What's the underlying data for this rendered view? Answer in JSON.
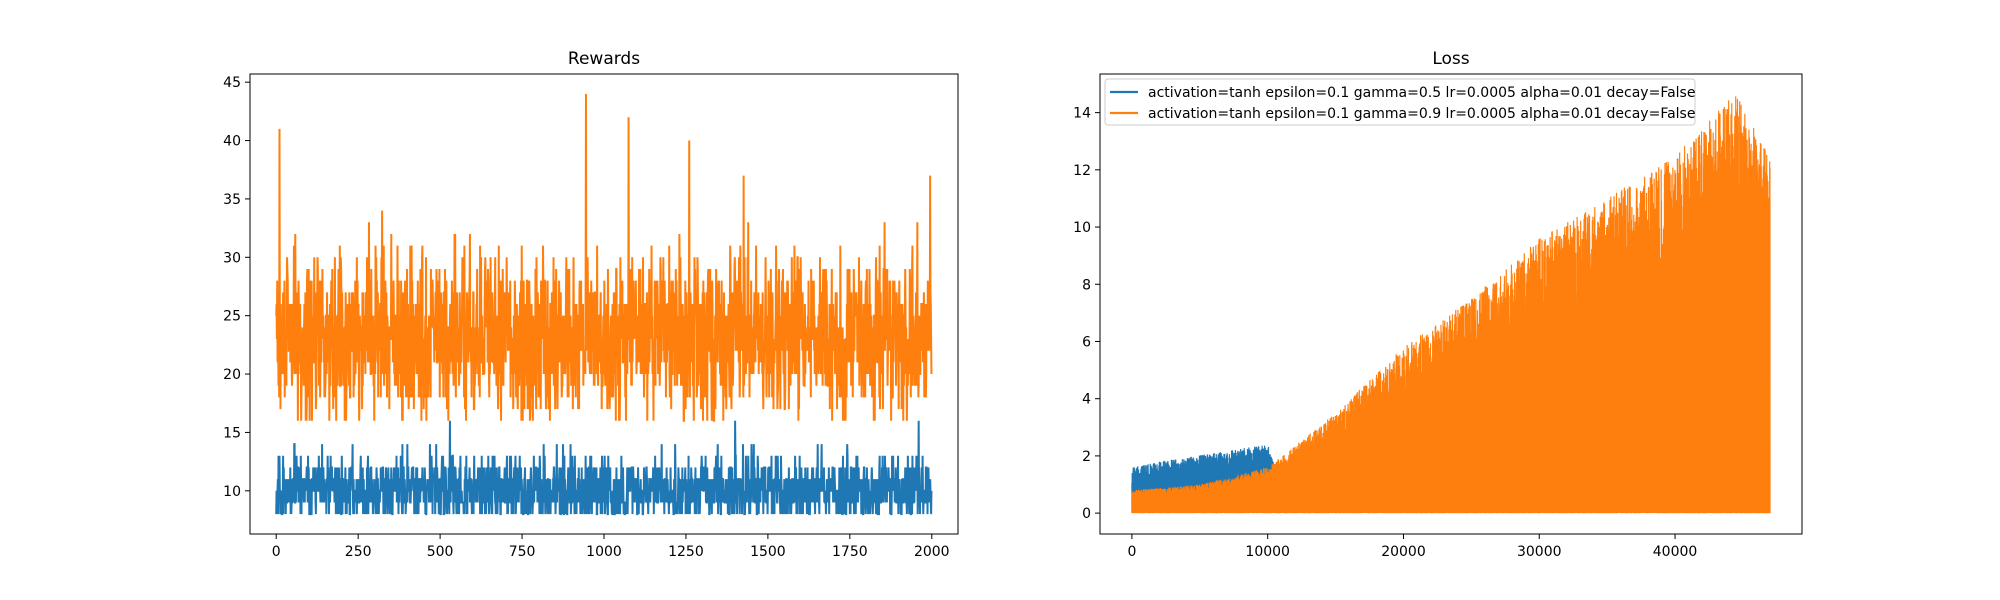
{
  "chart_data": [
    {
      "type": "line",
      "title": "Rewards",
      "xlabel": "",
      "ylabel": "",
      "xlim": [
        -80,
        2080
      ],
      "ylim": [
        6.3,
        45.7
      ],
      "xticks": [
        0,
        250,
        500,
        750,
        1000,
        1250,
        1500,
        1750,
        2000
      ],
      "yticks": [
        10,
        15,
        20,
        25,
        30,
        35,
        40,
        45
      ],
      "grid": false,
      "legend": false,
      "series": [
        {
          "color": "#1f77b4",
          "generator": {
            "kind": "reward",
            "n": 2000,
            "min": 8,
            "max": 16,
            "base": 10,
            "spread": 2,
            "peaks": [
              [
                530,
                16
              ],
              [
                1400,
                16
              ],
              [
                1960,
                16
              ]
            ],
            "seed": 11
          }
        },
        {
          "color": "#ff7f0e",
          "generator": {
            "kind": "reward",
            "n": 2000,
            "min": 16,
            "max": 44,
            "base": 23,
            "spread": 5,
            "peaks": [
              [
                10,
                41
              ],
              [
                945,
                44
              ],
              [
                1075,
                42
              ],
              [
                1260,
                40
              ],
              [
                1995,
                37
              ]
            ],
            "seed": 29
          }
        }
      ]
    },
    {
      "type": "line",
      "title": "Loss",
      "xlabel": "",
      "ylabel": "",
      "xlim": [
        -2350,
        49350
      ],
      "ylim": [
        -0.73,
        15.35
      ],
      "xticks": [
        0,
        10000,
        20000,
        30000,
        40000
      ],
      "yticks": [
        0,
        2,
        4,
        6,
        8,
        10,
        12,
        14
      ],
      "grid": false,
      "legend": "upper-left",
      "series": [
        {
          "name": "activation=tanh epsilon=0.1 gamma=0.5 lr=0.0005 alpha=0.01 decay=False",
          "color": "#1f77b4",
          "generator": {
            "kind": "loss",
            "n": 47000,
            "envelope": [
              [
                0,
                1.6
              ],
              [
                2000,
                1.8
              ],
              [
                6000,
                2.1
              ],
              [
                10000,
                2.4
              ],
              [
                11000,
                1.2
              ],
              [
                12500,
                0.15
              ],
              [
                47000,
                0.05
              ]
            ],
            "seed": 5
          }
        },
        {
          "name": "activation=tanh epsilon=0.1 gamma=0.9 lr=0.0005 alpha=0.01 decay=False",
          "color": "#ff7f0e",
          "generator": {
            "kind": "loss",
            "n": 47000,
            "envelope": [
              [
                0,
                0.8
              ],
              [
                5000,
                1.0
              ],
              [
                10000,
                1.6
              ],
              [
                15000,
                3.5
              ],
              [
                20000,
                5.8
              ],
              [
                25000,
                7.5
              ],
              [
                30000,
                9.6
              ],
              [
                35000,
                11.0
              ],
              [
                40000,
                12.5
              ],
              [
                44500,
                14.7
              ],
              [
                47000,
                12.5
              ]
            ],
            "seed": 17
          }
        }
      ]
    }
  ]
}
